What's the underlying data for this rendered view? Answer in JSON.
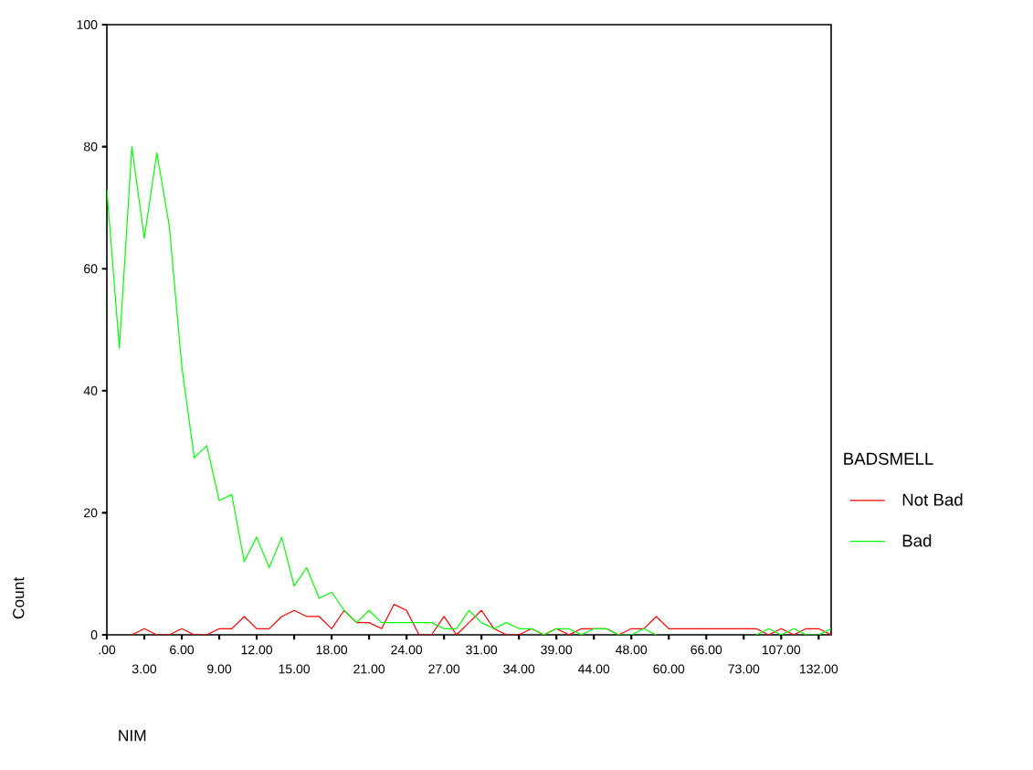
{
  "chart_data": {
    "type": "line",
    "xlabel": "NIM",
    "ylabel": "Count",
    "legend_title": "BADSMELL",
    "categories": [
      ".00",
      null,
      null,
      "3.00",
      null,
      null,
      "6.00",
      null,
      null,
      "9.00",
      null,
      null,
      "12.00",
      null,
      null,
      "15.00",
      null,
      null,
      "18.00",
      null,
      null,
      "21.00",
      null,
      null,
      "24.00",
      null,
      null,
      "27.00",
      null,
      null,
      "31.00",
      null,
      null,
      "34.00",
      null,
      null,
      "39.00",
      null,
      null,
      "44.00",
      null,
      null,
      "48.00",
      null,
      null,
      "60.00",
      null,
      null,
      "66.00",
      null,
      null,
      "73.00",
      null,
      null,
      "107.00",
      null,
      null,
      "132.00",
      null
    ],
    "series": [
      {
        "name": "Not Bad",
        "color": "#ff0000",
        "values": [
          null,
          null,
          0,
          1,
          0,
          0,
          1,
          0,
          0,
          1,
          1,
          3,
          1,
          1,
          3,
          4,
          3,
          3,
          1,
          4,
          2,
          2,
          1,
          5,
          4,
          0,
          0,
          3,
          0,
          2,
          4,
          1,
          0,
          0,
          1,
          0,
          1,
          0,
          1,
          1,
          1,
          0,
          1,
          1,
          3,
          1,
          1,
          1,
          1,
          1,
          1,
          1,
          1,
          0,
          1,
          0,
          1,
          1,
          0
        ]
      },
      {
        "name": "Bad",
        "color": "#00ff00",
        "values": [
          73,
          47,
          80,
          65,
          79,
          67,
          44,
          29,
          31,
          22,
          23,
          12,
          16,
          11,
          16,
          8,
          11,
          6,
          7,
          4,
          2,
          4,
          2,
          2,
          2,
          2,
          2,
          1,
          1,
          4,
          2,
          1,
          2,
          1,
          1,
          0,
          1,
          1,
          0,
          1,
          1,
          0,
          0,
          1,
          0,
          null,
          null,
          null,
          null,
          null,
          null,
          null,
          0,
          1,
          0,
          1,
          0,
          0,
          1
        ]
      }
    ],
    "ylim": [
      0,
      100
    ],
    "yticks": [
      0,
      20,
      40,
      60,
      80,
      100
    ],
    "grid": false,
    "legend": "right",
    "marker": "none",
    "line_style": "solid"
  }
}
